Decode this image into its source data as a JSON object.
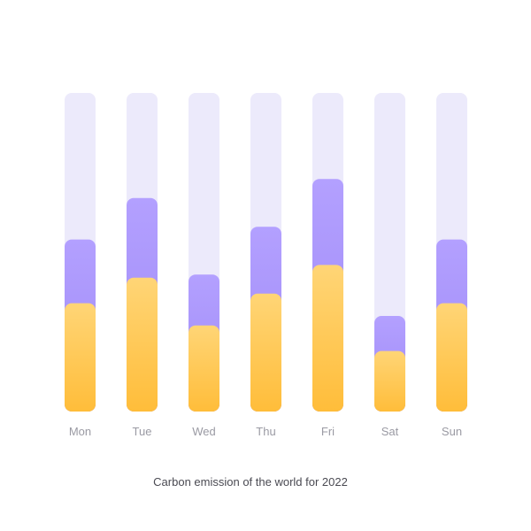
{
  "chart_data": {
    "type": "bar",
    "title": "Carbon emission of the world for 2022",
    "categories": [
      "Mon",
      "Tue",
      "Wed",
      "Thu",
      "Fri",
      "Sat",
      "Sun"
    ],
    "ylim": [
      0,
      100
    ],
    "series": [
      {
        "values": [
          34,
          42,
          27,
          37,
          46,
          19,
          34
        ]
      },
      {
        "values": [
          20,
          25,
          16,
          21,
          27,
          11,
          20
        ]
      }
    ],
    "colors": {
      "track": "#ECEAFB",
      "bottom_top": "#FFD576",
      "bottom_bottom": "#FFBD3A",
      "upper_top": "#B3A0FF",
      "upper_bottom": "#9E89F5",
      "tick_text": "#9A9AA3",
      "title_text": "#4A4A52"
    }
  }
}
